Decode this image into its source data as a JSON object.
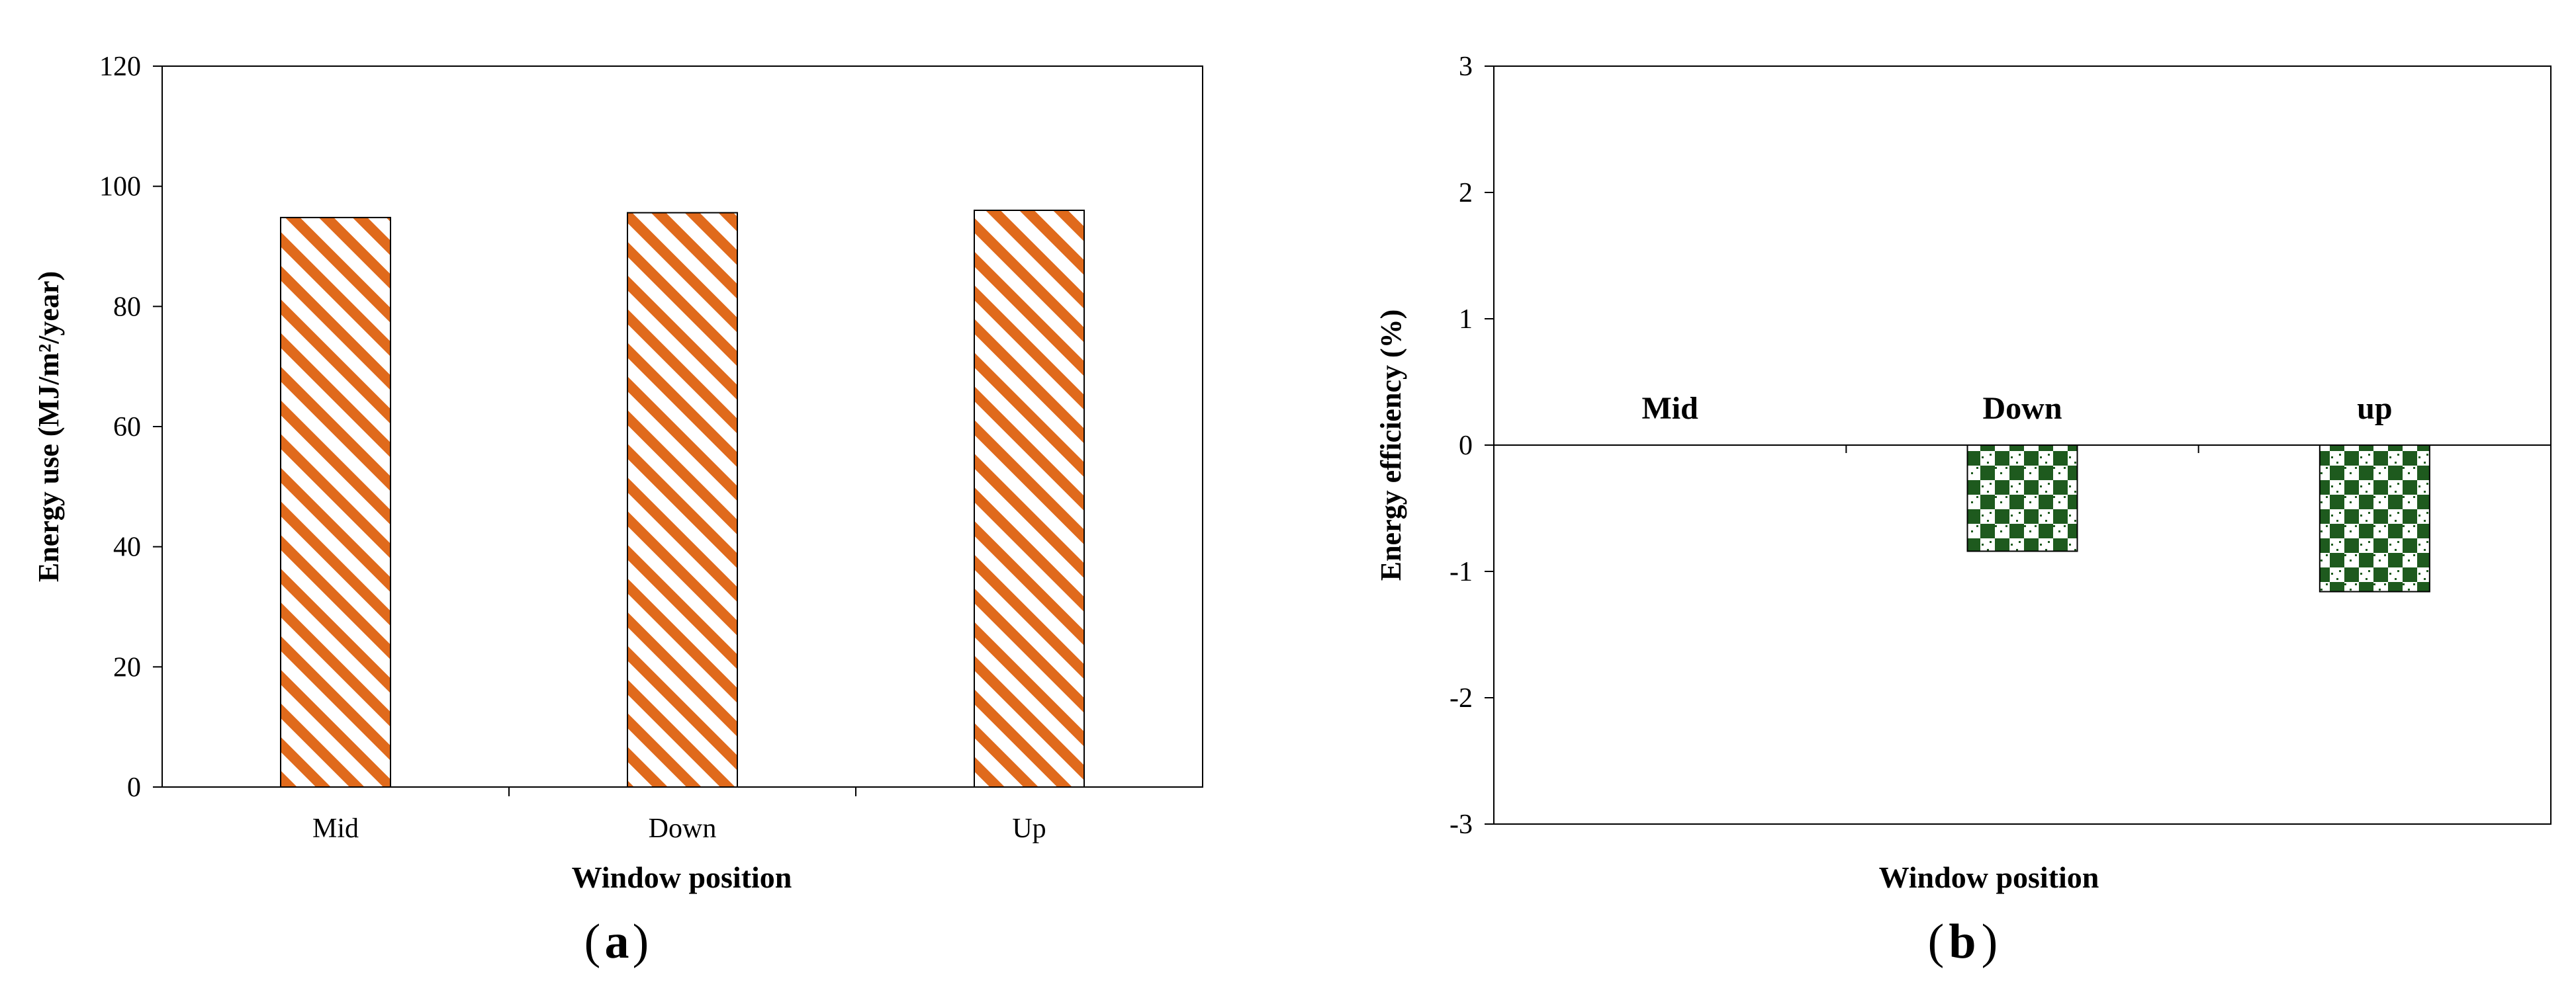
{
  "chart_data": [
    {
      "type": "bar",
      "panel_label": "a",
      "categories": [
        "Mid",
        "Down",
        "Up"
      ],
      "values": [
        94.8,
        95.6,
        96.0
      ],
      "xlabel": "Window position",
      "ylabel": "Energy use (MJ/m²/year)",
      "ylim": [
        0,
        120
      ],
      "yticks": [
        0,
        20,
        40,
        60,
        80,
        100,
        120
      ],
      "grid": false,
      "legend": "none",
      "bar_color": "#e06a1c",
      "bar_pattern": "diagonal-stripes"
    },
    {
      "type": "bar",
      "panel_label": "b",
      "categories": [
        "Mid",
        "Down",
        "up"
      ],
      "values": [
        0,
        -0.84,
        -1.16
      ],
      "xlabel": "Window position",
      "ylabel": "Energy efficiency (%)",
      "ylim": [
        -3,
        3
      ],
      "yticks": [
        3,
        2,
        1,
        0,
        -1,
        -2,
        -3
      ],
      "grid": false,
      "legend": "none",
      "bar_color": "#1e5a1e",
      "bar_pattern": "checkerboard",
      "category_labels_above_zero_line": true
    }
  ]
}
